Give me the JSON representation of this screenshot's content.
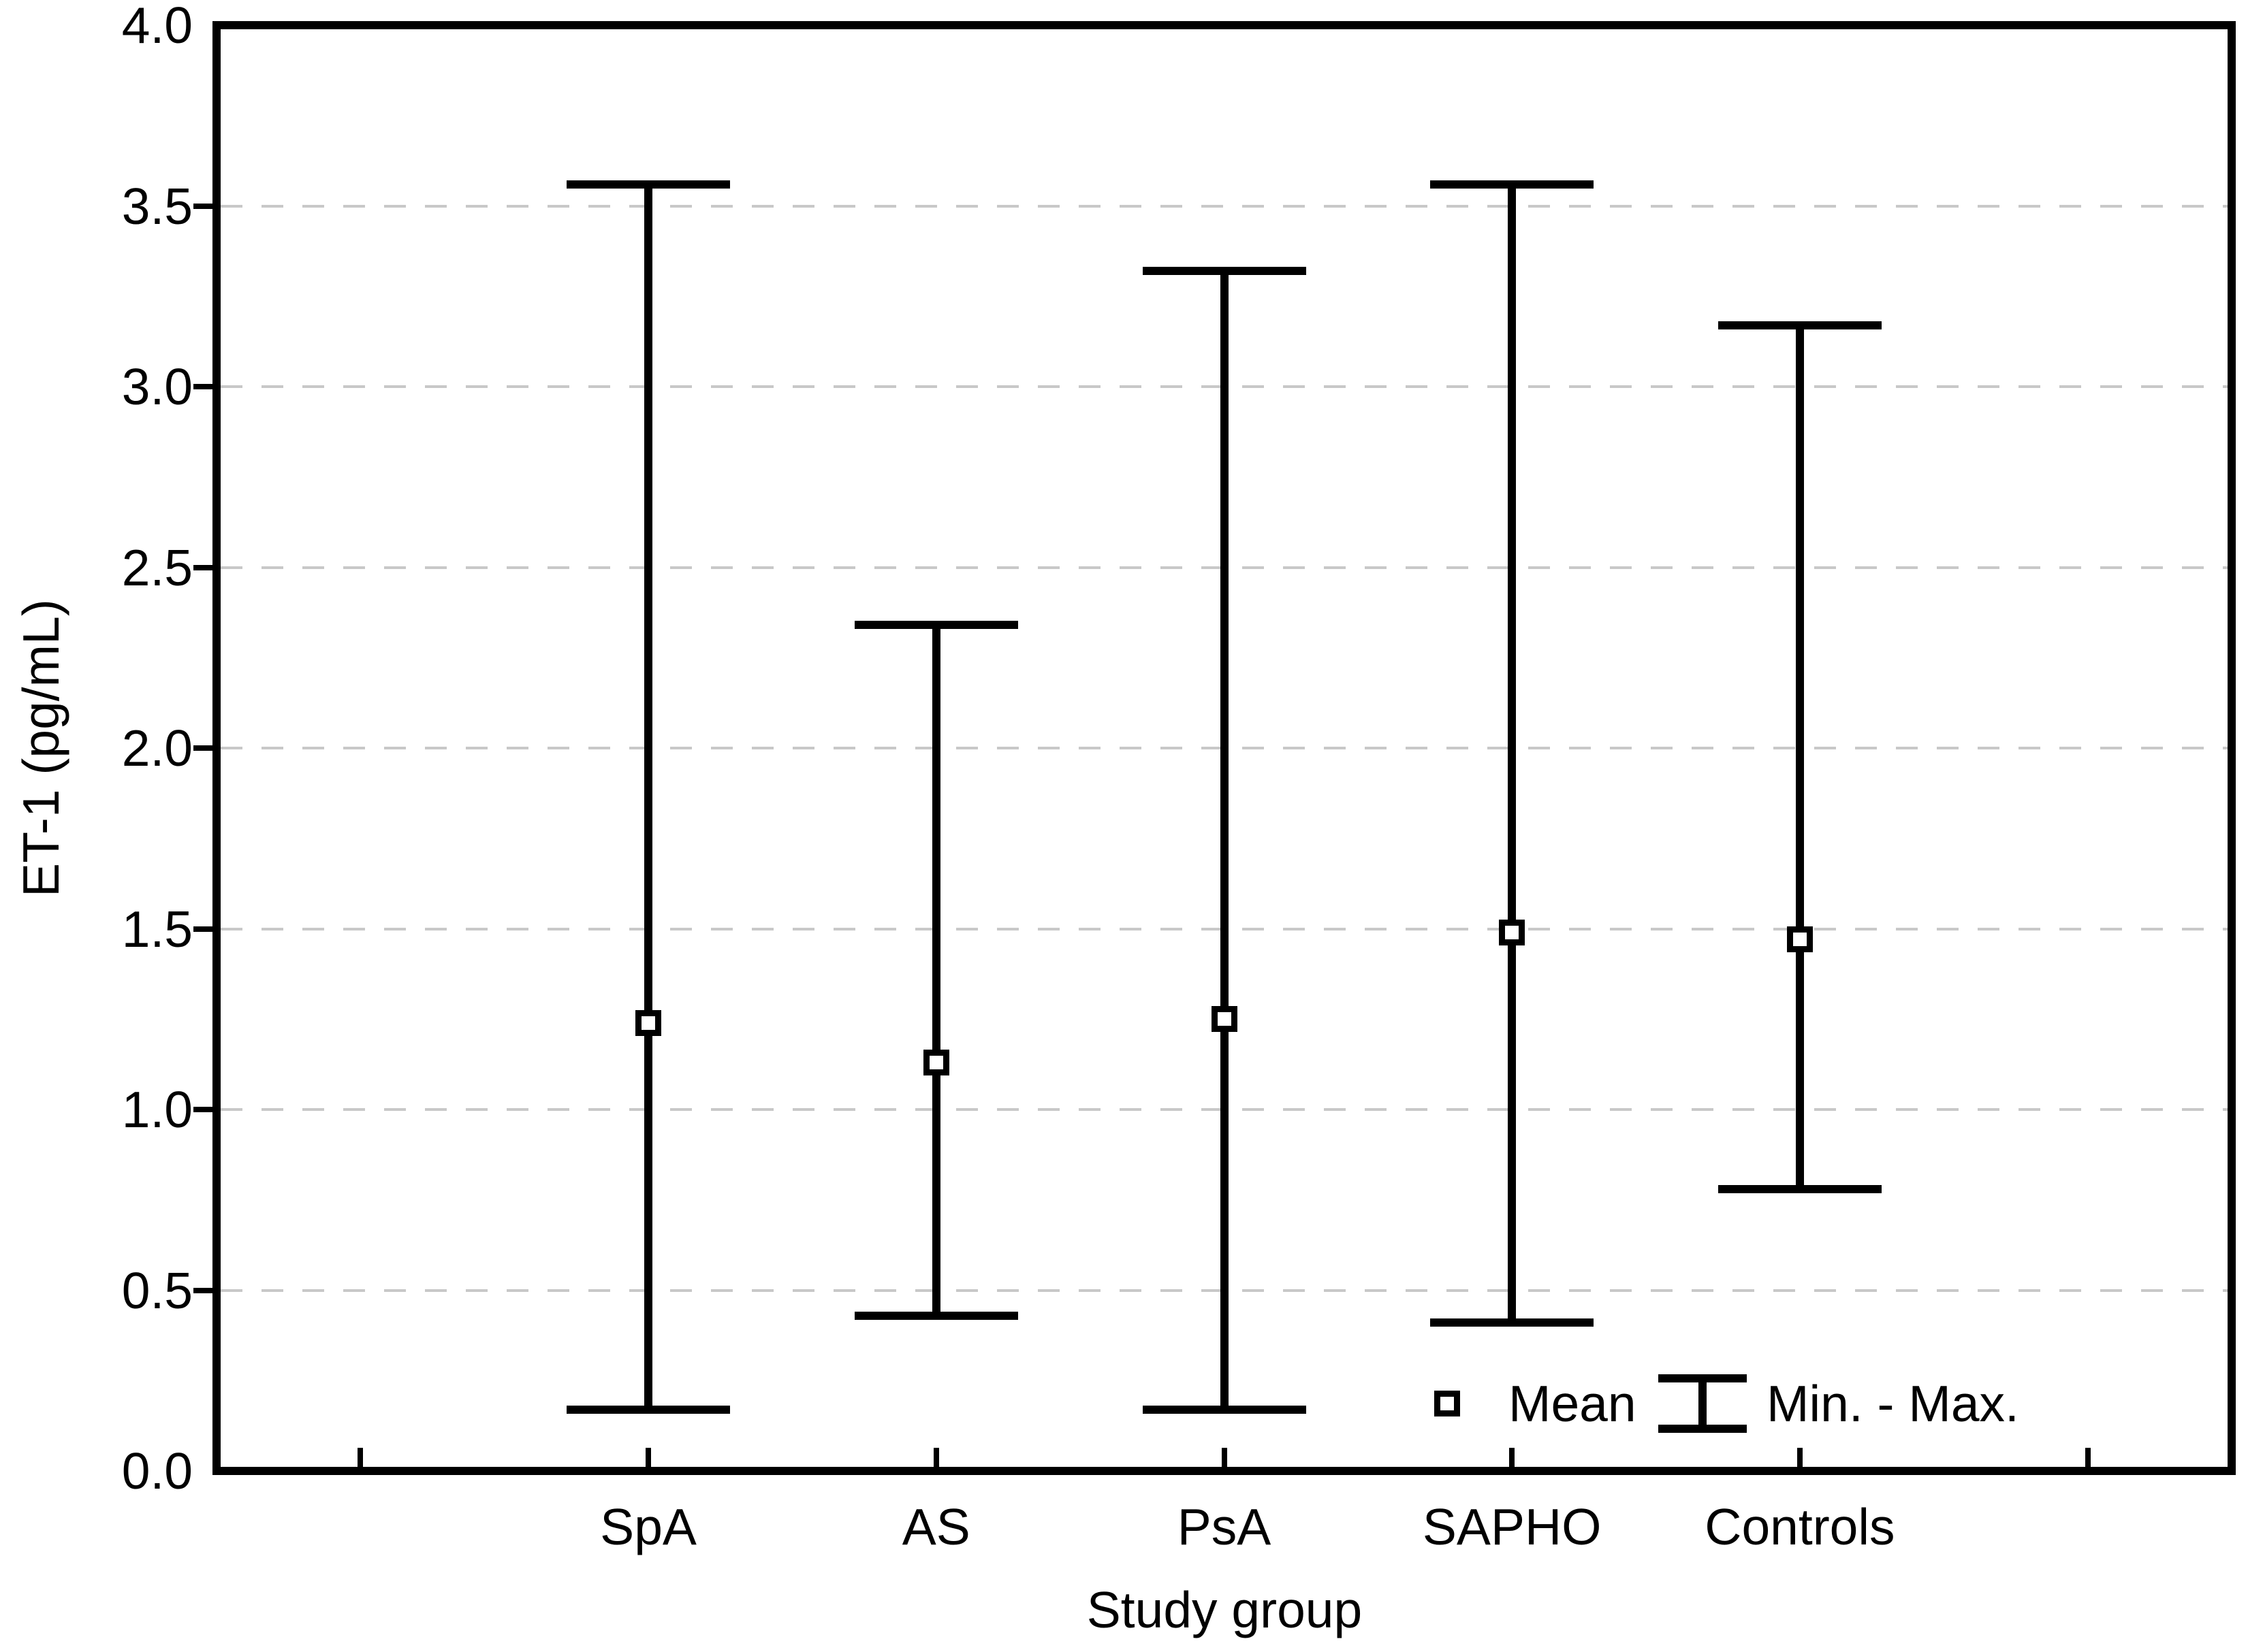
{
  "figure": {
    "background": "#ffffff",
    "line_color": "#000000",
    "gridline_color": "#c8c8c8"
  },
  "chart_data": {
    "type": "range-plot-min-max-with-mean",
    "title": "",
    "xlabel": "Study group",
    "ylabel": "ET-1 (pg/mL)",
    "categories": [
      "SpA",
      "AS",
      "PsA",
      "SAPHO",
      "Controls"
    ],
    "series": [
      {
        "name": "Mean",
        "values": [
          1.24,
          1.13,
          1.25,
          1.49,
          1.47
        ]
      },
      {
        "name": "Min",
        "values": [
          0.17,
          0.43,
          0.17,
          0.41,
          0.78
        ]
      },
      {
        "name": "Max",
        "values": [
          3.56,
          2.34,
          3.32,
          3.56,
          3.17
        ]
      }
    ],
    "ylim": [
      0.0,
      4.0
    ],
    "ytick_step": 0.5,
    "ytick_labels": [
      "0.0",
      "0.5",
      "1.0",
      "1.5",
      "2.0",
      "2.5",
      "3.0",
      "3.5",
      "4.0"
    ],
    "grid": "horizontal-dashed",
    "legend": {
      "position": "bottom-right-inside",
      "items": [
        {
          "marker": "open-square",
          "label": "Mean"
        },
        {
          "marker": "i-beam",
          "label": "Min. - Max."
        }
      ]
    }
  }
}
